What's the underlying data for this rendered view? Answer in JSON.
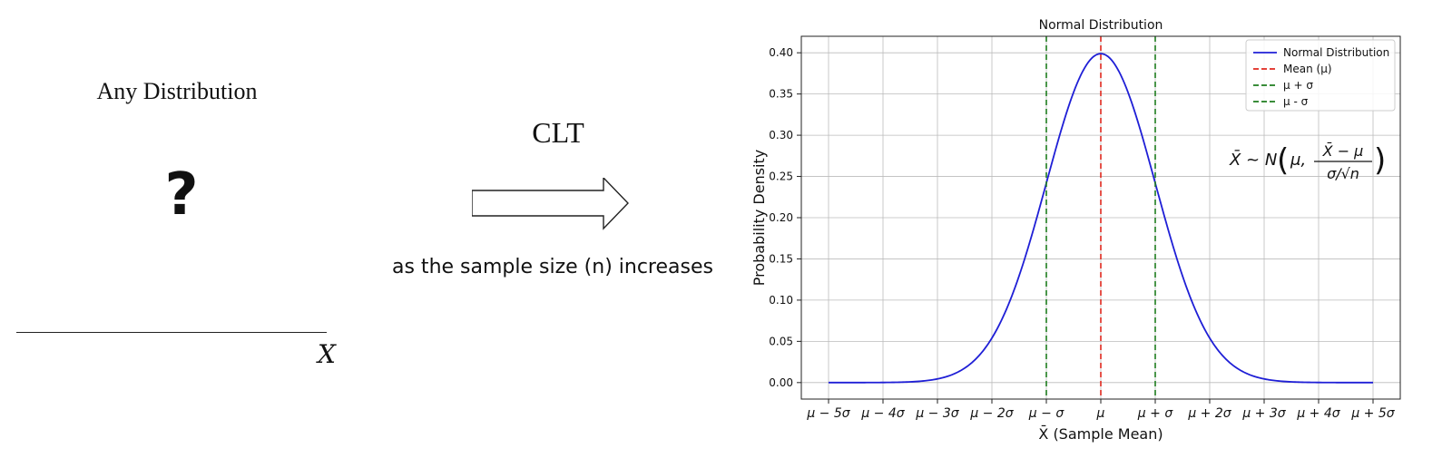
{
  "left_panel": {
    "title": "Any Distribution",
    "symbol": "?",
    "axis_var": "X"
  },
  "middle": {
    "label": "CLT",
    "caption": "as the sample size (n) increases"
  },
  "chart_data": {
    "type": "line",
    "title": "Normal Distribution",
    "xlabel": "X̄ (Sample Mean)",
    "ylabel": "Probability Density",
    "x_range": [
      -5,
      5
    ],
    "ylim": [
      -0.02,
      0.42
    ],
    "x_ticks": [
      -5,
      -4,
      -3,
      -2,
      -1,
      0,
      1,
      2,
      3,
      4,
      5
    ],
    "x_tick_labels": [
      "μ − 5σ",
      "μ − 4σ",
      "μ − 3σ",
      "μ − 2σ",
      "μ − σ",
      "μ",
      "μ + σ",
      "μ + 2σ",
      "μ + 3σ",
      "μ + 4σ",
      "μ + 5σ"
    ],
    "y_ticks": [
      0.0,
      0.05,
      0.1,
      0.15,
      0.2,
      0.25,
      0.3,
      0.35,
      0.4
    ],
    "y_tick_labels": [
      "0.00",
      "0.05",
      "0.10",
      "0.15",
      "0.20",
      "0.25",
      "0.30",
      "0.35",
      "0.40"
    ],
    "grid": true,
    "legend_placement": "top-right",
    "series": [
      {
        "name": "Normal Distribution",
        "kind": "curve",
        "color": "#1f1fd6",
        "mean": 0,
        "sd": 1,
        "peak": 0.3989
      },
      {
        "name": "Mean (μ)",
        "kind": "vline",
        "x": 0,
        "color": "#e0281e",
        "dash": true
      },
      {
        "name": "μ + σ",
        "kind": "vline",
        "x": 1,
        "color": "#1e7d1e",
        "dash": true
      },
      {
        "name": "μ - σ",
        "kind": "vline",
        "x": -1,
        "color": "#1e7d1e",
        "dash": true
      }
    ],
    "annotation": {
      "lhs": "X̄ ~ N",
      "mu": "μ,",
      "numerator": "X̄ − μ",
      "denominator": "σ/√n"
    }
  }
}
